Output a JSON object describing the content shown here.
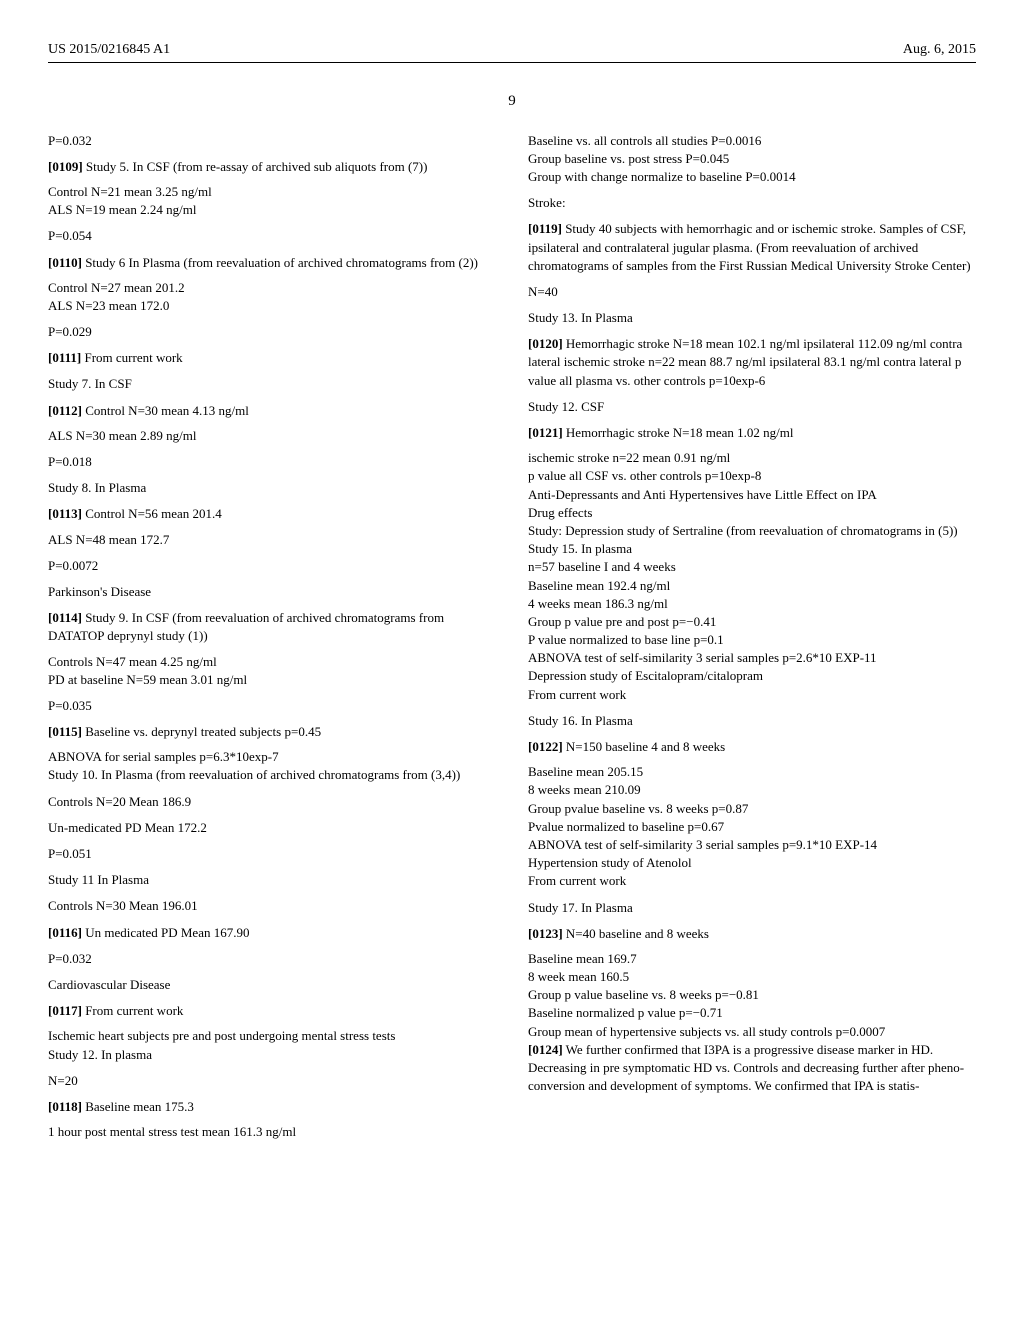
{
  "header": {
    "pubnum": "US 2015/0216845 A1",
    "pubdate": "Aug. 6, 2015"
  },
  "pagenum": "9",
  "left": {
    "p_032a": "P=0.032",
    "p0109_lead": "[0109]",
    "p0109_body": "  Study 5. In CSF (from re-assay of archived sub aliquots from (7))",
    "l01": "Control N=21 mean 3.25 ng/ml",
    "l02": "ALS N=19 mean 2.24 ng/ml",
    "p_054": "P=0.054",
    "p0110_lead": "[0110]",
    "p0110_body": "  Study 6 In Plasma (from reevaluation of archived chromatograms from (2))",
    "l03": "Control N=27 mean 201.2",
    "l04": "ALS N=23 mean 172.0",
    "p_029": "P=0.029",
    "p0111_lead": "[0111]",
    "p0111_body": "  From current work",
    "s7": "Study 7. In CSF",
    "p0112_lead": "[0112]",
    "p0112_body": "  Control N=30 mean 4.13 ng/ml",
    "l05": "ALS N=30 mean 2.89 ng/ml",
    "p_018": "P=0.018",
    "s8": "Study 8. In Plasma",
    "p0113_lead": "[0113]",
    "p0113_body": "  Control N=56 mean 201.4",
    "l06": "ALS N=48 mean 172.7",
    "p_0072": "P=0.0072",
    "pd": "Parkinson's Disease",
    "p0114_lead": "[0114]",
    "p0114_body": "  Study 9. In CSF (from reevaluation of archived chromatograms from DATATOP deprynyl study (1))",
    "l07": "Controls N=47 mean 4.25 ng/ml",
    "l08": "PD at baseline N=59 mean 3.01 ng/ml",
    "p_035": "P=0.035",
    "p0115_lead": "[0115]",
    "p0115_body": "  Baseline vs. deprynyl treated subjects p=0.45",
    "l09": "ABNOVA for serial samples p=6.3*10exp-7",
    "l10": "Study 10. In Plasma (from reevaluation of archived chromatograms from (3,4))",
    "l11": "Controls N=20 Mean 186.9",
    "l12": "Un-medicated PD Mean 172.2",
    "p_051": "P=0.051",
    "s11": "Study 11 In Plasma",
    "l13": "Controls N=30 Mean 196.01",
    "p0116_lead": "[0116]",
    "p0116_body": "  Un medicated PD Mean 167.90",
    "p_032b": "P=0.032",
    "cvd": "Cardiovascular Disease",
    "p0117_lead": "[0117]",
    "p0117_body": "  From current work",
    "l14": "Ischemic heart subjects pre and post undergoing mental stress tests",
    "l15": "Study 12. In plasma",
    "n20": "N=20",
    "p0118_lead": "[0118]",
    "p0118_body": "  Baseline mean 175.3",
    "l16": "1 hour post mental stress test mean 161.3 ng/ml"
  },
  "right": {
    "r01": "Baseline vs. all controls all studies P=0.0016",
    "r02": "Group baseline vs. post stress P=0.045",
    "r03": "Group with change normalize to baseline P=0.0014",
    "stroke": "Stroke:",
    "p0119_lead": "[0119]",
    "p0119_body": "  Study 40 subjects with hemorrhagic and or ischemic stroke. Samples of CSF, ipsilateral and contralateral jugular plasma. (From reevaluation of archived chromatograms of samples from the First Russian Medical University Stroke Center)",
    "n40": "N=40",
    "s13": "Study 13. In Plasma",
    "p0120_lead": "[0120]",
    "p0120_body": "  Hemorrhagic stroke N=18 mean 102.1 ng/ml ipsilateral 112.09 ng/ml contra lateral ischemic stroke n=22 mean 88.7 ng/ml ipsilateral 83.1 ng/ml contra lateral p value all plasma vs. other controls p=10exp-6",
    "s12csf": "Study 12. CSF",
    "p0121_lead": "[0121]",
    "p0121_body": "  Hemorrhagic stroke N=18 mean 1.02 ng/ml",
    "r04": "ischemic stroke n=22 mean 0.91 ng/ml",
    "r05": "p value all CSF vs. other controls p=10exp-8",
    "r06": "Anti-Depressants and Anti Hypertensives have Little Effect on IPA",
    "r07": "Drug effects",
    "r08": "Study: Depression study of Sertraline (from reevaluation of chromatograms in (5))",
    "r09": "Study 15. In plasma",
    "r10": "n=57 baseline I and 4 weeks",
    "r11": "Baseline mean 192.4 ng/ml",
    "r12": "4 weeks mean 186.3 ng/ml",
    "r13": "Group p value pre and post p=−0.41",
    "r14": "P value normalized to base line p=0.1",
    "r15": "ABNOVA test of self-similarity 3 serial samples p=2.6*10 EXP-11",
    "r16": "Depression study of Escitalopram/citalopram",
    "r17": "From current work",
    "s16": "Study 16. In Plasma",
    "p0122_lead": "[0122]",
    "p0122_body": "  N=150 baseline 4 and 8 weeks",
    "r18": "Baseline mean 205.15",
    "r19": "8 weeks mean 210.09",
    "r20": "Group pvalue baseline vs. 8 weeks p=0.87",
    "r21": "Pvalue normalized to baseline p=0.67",
    "r22": "ABNOVA test of self-similarity 3 serial samples p=9.1*10 EXP-14",
    "r23": "Hypertension study of Atenolol",
    "r24": "From current work",
    "s17": "Study 17. In Plasma",
    "p0123_lead": "[0123]",
    "p0123_body": "  N=40 baseline and 8 weeks",
    "r25": "Baseline mean 169.7",
    "r26": "8 week mean 160.5",
    "r27": "Group p value baseline vs. 8 weeks p=−0.81",
    "r28": "Baseline normalized p value p=−0.71",
    "r29": "Group mean of hypertensive subjects vs. all study controls p=0.0007",
    "p0124_lead": "[0124]",
    "p0124_body": "  We further confirmed that I3PA is a progressive disease marker in HD. Decreasing in pre symptomatic HD vs. Controls and decreasing further after pheno-conversion and development of symptoms. We confirmed that IPA is statis-"
  }
}
